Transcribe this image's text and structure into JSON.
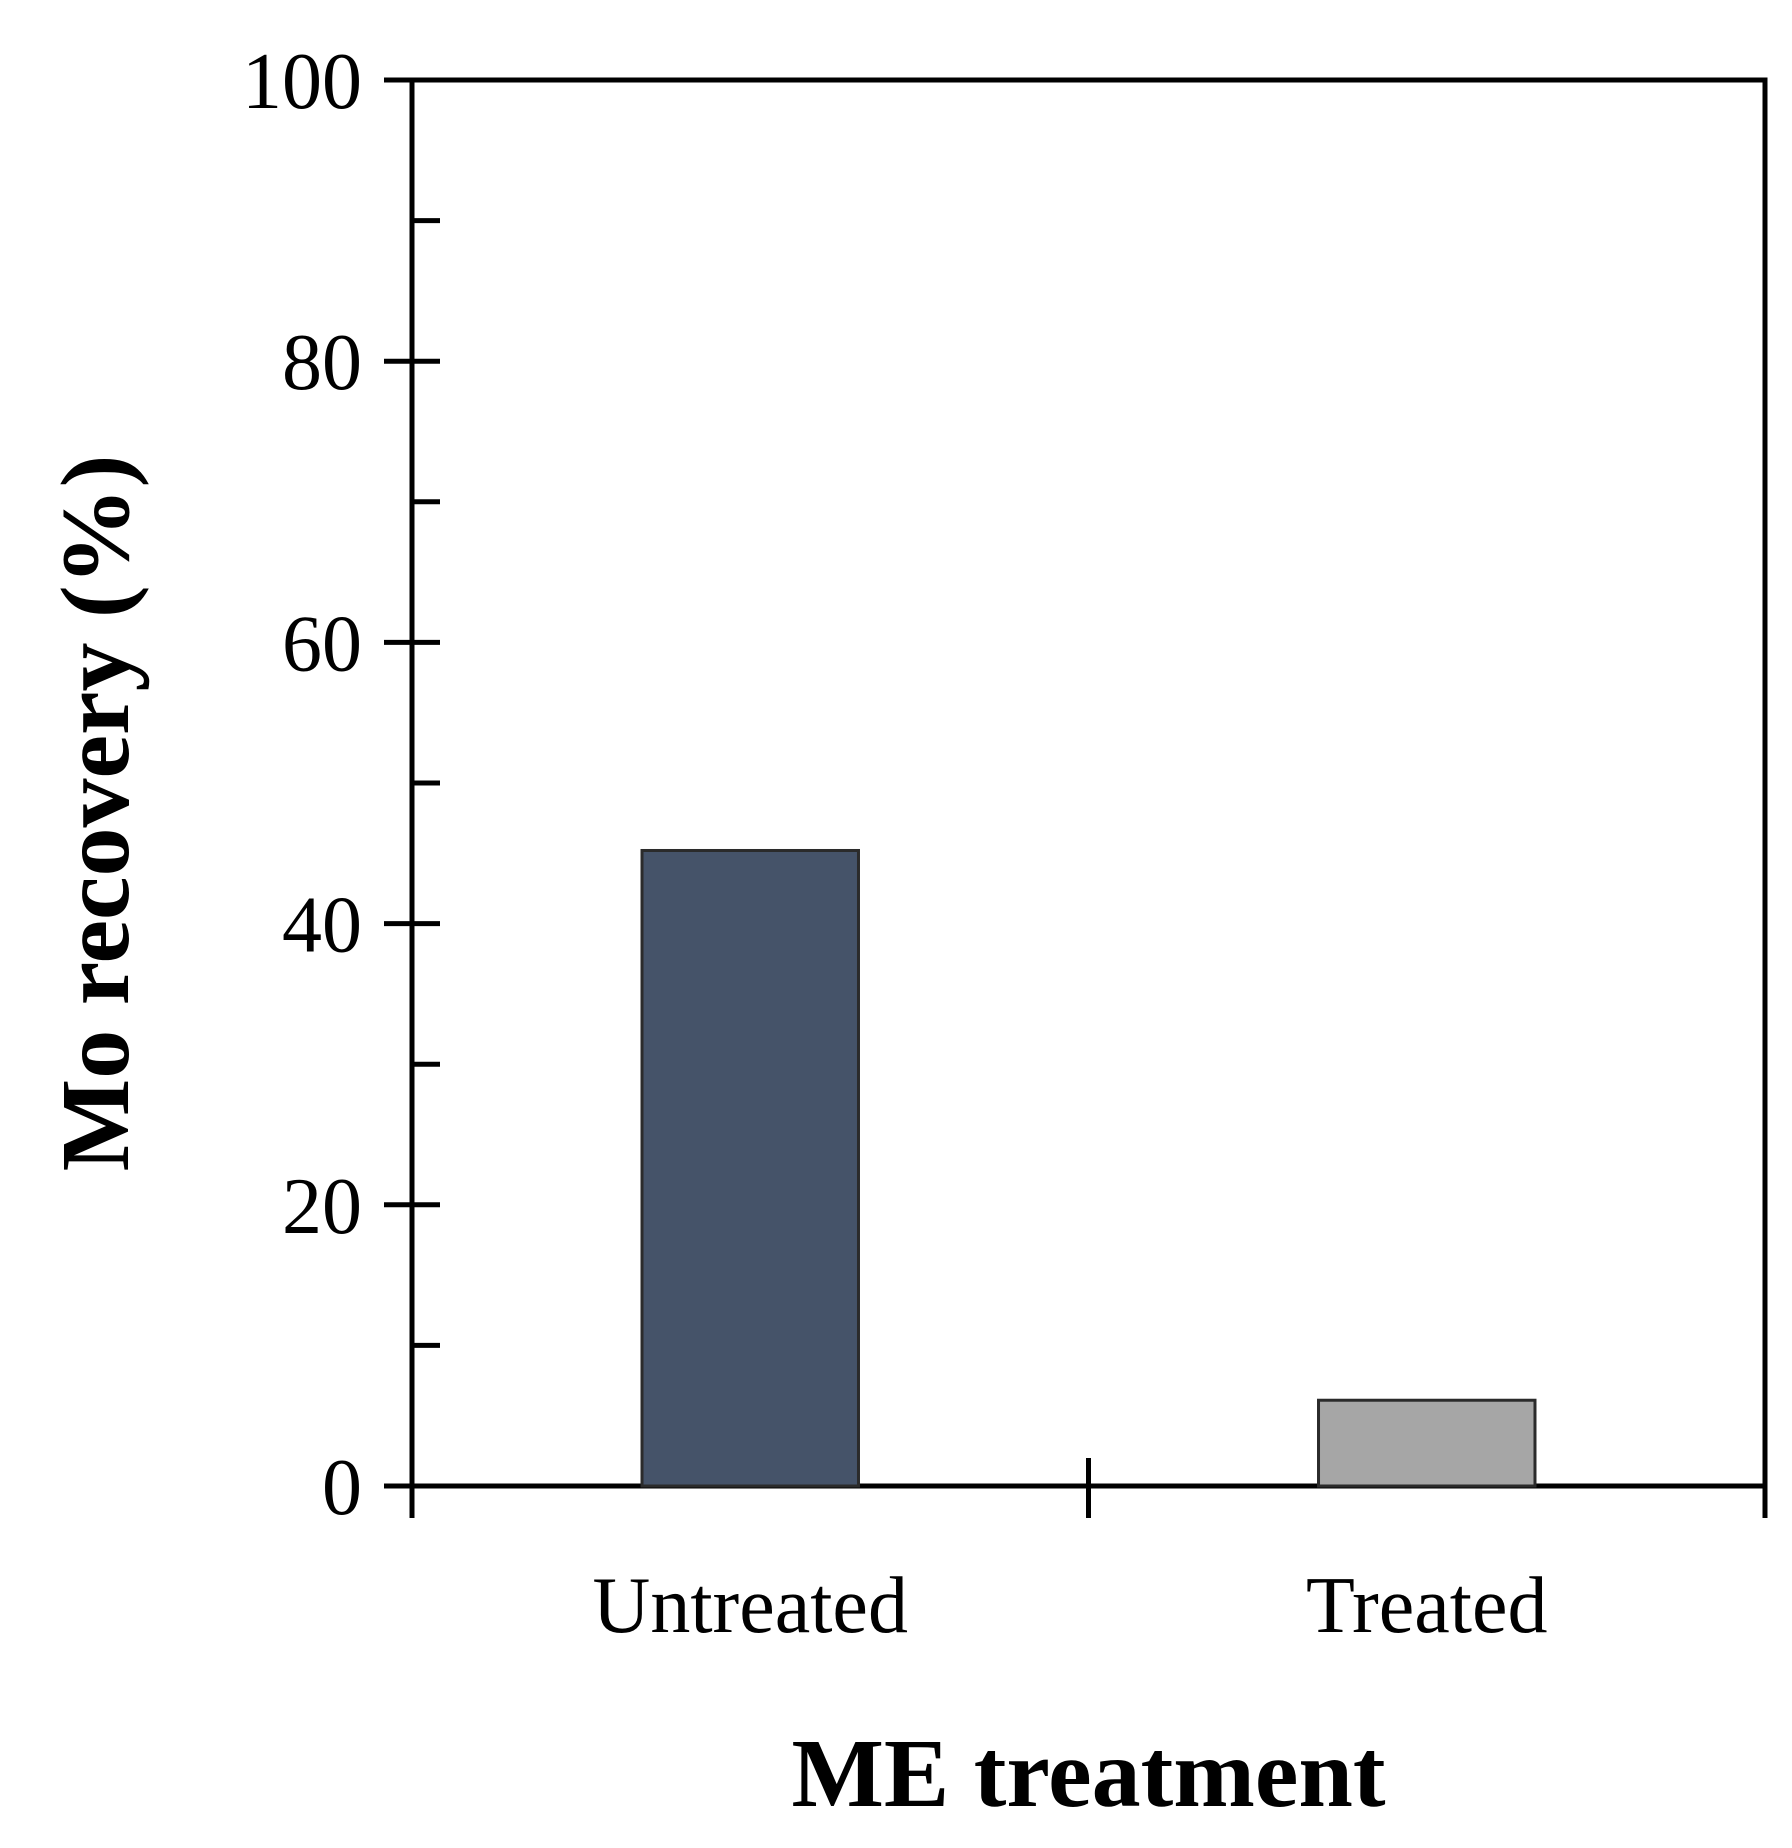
{
  "chart_data": {
    "type": "bar",
    "title": "",
    "xlabel": "ME treatment",
    "ylabel": "Mo recovery (%)",
    "categories": [
      "Untreated",
      "Treated"
    ],
    "values": [
      45.2,
      6.1
    ],
    "bar_colors": [
      "#455369",
      "#a6a6a6"
    ],
    "ylim": [
      0,
      100
    ],
    "yticks": [
      0,
      20,
      40,
      60,
      80,
      100
    ],
    "minor_yticks": [
      10,
      30,
      50,
      70,
      90
    ],
    "legend": "none",
    "grid": false
  }
}
